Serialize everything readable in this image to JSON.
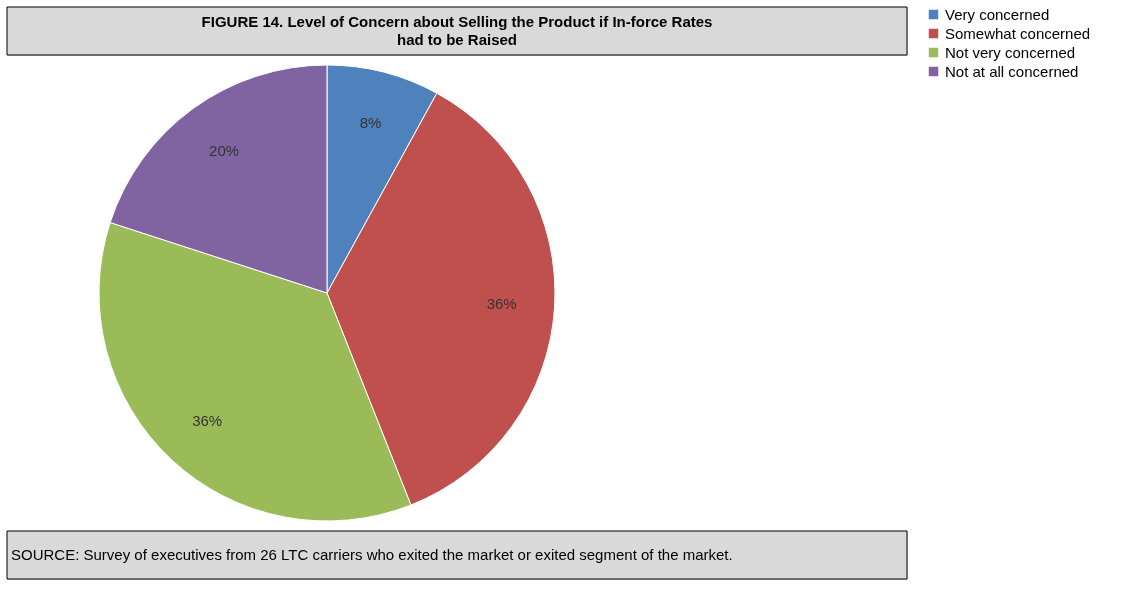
{
  "chart_data": {
    "type": "pie",
    "title": "FIGURE 14. Level of Concern about Selling the Product if In-force Rates had to be Raised",
    "categories": [
      "Very concerned",
      "Somewhat concerned",
      "Not very concerned",
      "Not at all concerned"
    ],
    "values": [
      8,
      36,
      36,
      20
    ],
    "colors": [
      "#4f81bd",
      "#c0504d",
      "#9bbb59",
      "#8064a2"
    ],
    "value_labels": [
      "8%",
      "36%",
      "36%",
      "20%"
    ],
    "legend": "right",
    "annotations": [
      "SOURCE: Survey of executives from 26 LTC carriers who exited the market or exited segment of the market."
    ]
  }
}
